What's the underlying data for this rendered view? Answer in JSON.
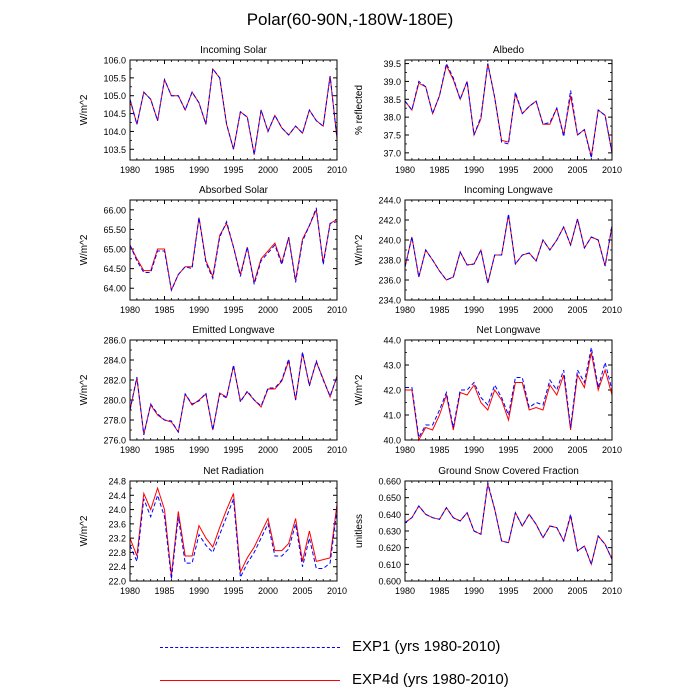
{
  "title": "Polar(60-90N,-180W-180E)",
  "legend": [
    {
      "label": "EXP1 (yrs 1980-2010)",
      "color": "#0000ff",
      "style": "dashed"
    },
    {
      "label": "EXP4d (yrs 1980-2010)",
      "color": "#ff0000",
      "style": "solid"
    }
  ],
  "chart_data": [
    {
      "type": "line",
      "title": "Incoming Solar",
      "ylabel": "W/m^2",
      "xlim": [
        1980,
        2010
      ],
      "ylim": [
        103.2,
        106.0
      ],
      "xticks": [
        1980,
        1985,
        1990,
        1995,
        2000,
        2005,
        2010
      ],
      "yticks": [
        103.5,
        104.0,
        104.5,
        105.0,
        105.5,
        106.0
      ],
      "ytick_labels": [
        "103.5",
        "104.0",
        "104.5",
        "105.0",
        "105.5",
        "106.0"
      ],
      "x": [
        1980,
        1981,
        1982,
        1983,
        1984,
        1985,
        1986,
        1987,
        1988,
        1989,
        1990,
        1991,
        1992,
        1993,
        1994,
        1995,
        1996,
        1997,
        1998,
        1999,
        2000,
        2001,
        2002,
        2003,
        2004,
        2005,
        2006,
        2007,
        2008,
        2009,
        2010
      ],
      "series": [
        {
          "name": "EXP1 (yrs 1980-2010)",
          "values": [
            104.9,
            104.2,
            105.1,
            104.9,
            104.3,
            105.45,
            105.0,
            105.0,
            104.6,
            105.1,
            104.8,
            104.2,
            105.75,
            105.5,
            104.2,
            103.5,
            104.55,
            104.4,
            103.35,
            104.6,
            104.0,
            104.45,
            104.1,
            103.9,
            104.15,
            103.95,
            104.6,
            104.3,
            104.15,
            105.55,
            103.8
          ]
        },
        {
          "name": "EXP4d (yrs 1980-2010)",
          "values": [
            104.9,
            104.2,
            105.1,
            104.9,
            104.3,
            105.45,
            105.0,
            105.0,
            104.6,
            105.1,
            104.8,
            104.2,
            105.75,
            105.5,
            104.2,
            103.5,
            104.55,
            104.4,
            103.35,
            104.6,
            104.0,
            104.45,
            104.1,
            103.9,
            104.15,
            103.95,
            104.6,
            104.3,
            104.15,
            105.55,
            103.8
          ]
        }
      ]
    },
    {
      "type": "line",
      "title": "Albedo",
      "ylabel": "% reflected",
      "xlim": [
        1980,
        2010
      ],
      "ylim": [
        36.8,
        39.6
      ],
      "xticks": [
        1980,
        1985,
        1990,
        1995,
        2000,
        2005,
        2010
      ],
      "yticks": [
        37.0,
        37.5,
        38.0,
        38.5,
        39.0,
        39.5
      ],
      "ytick_labels": [
        "37.0",
        "37.5",
        "38.0",
        "38.5",
        "39.0",
        "39.5"
      ],
      "x": [
        1980,
        1981,
        1982,
        1983,
        1984,
        1985,
        1986,
        1987,
        1988,
        1989,
        1990,
        1991,
        1992,
        1993,
        1994,
        1995,
        1996,
        1997,
        1998,
        1999,
        2000,
        2001,
        2002,
        2003,
        2004,
        2005,
        2006,
        2007,
        2008,
        2009,
        2010
      ],
      "series": [
        {
          "name": "EXP1 (yrs 1980-2010)",
          "values": [
            38.45,
            38.2,
            39.0,
            38.85,
            38.1,
            38.6,
            39.5,
            39.1,
            38.5,
            39.0,
            37.5,
            38.0,
            39.5,
            38.55,
            37.3,
            37.25,
            38.7,
            38.1,
            38.3,
            38.45,
            37.8,
            37.85,
            38.25,
            37.45,
            38.75,
            37.5,
            37.65,
            36.85,
            38.2,
            38.05,
            37.0
          ]
        },
        {
          "name": "EXP4d (yrs 1980-2010)",
          "values": [
            38.45,
            38.2,
            38.95,
            38.85,
            38.1,
            38.6,
            39.45,
            39.05,
            38.5,
            39.0,
            37.5,
            37.95,
            39.5,
            38.55,
            37.35,
            37.3,
            38.65,
            38.1,
            38.3,
            38.45,
            37.8,
            37.8,
            38.25,
            37.5,
            38.6,
            37.5,
            37.65,
            36.9,
            38.2,
            38.05,
            37.0
          ]
        }
      ]
    },
    {
      "type": "line",
      "title": "Absorbed Solar",
      "ylabel": "W/m^2",
      "xlim": [
        1980,
        2010
      ],
      "ylim": [
        63.7,
        66.25
      ],
      "xticks": [
        1980,
        1985,
        1990,
        1995,
        2000,
        2005,
        2010
      ],
      "yticks": [
        64.0,
        64.5,
        65.0,
        65.5,
        66.0
      ],
      "ytick_labels": [
        "64.00",
        "64.50",
        "65.00",
        "65.50",
        "66.00"
      ],
      "x": [
        1980,
        1981,
        1982,
        1983,
        1984,
        1985,
        1986,
        1987,
        1988,
        1989,
        1990,
        1991,
        1992,
        1993,
        1994,
        1995,
        1996,
        1997,
        1998,
        1999,
        2000,
        2001,
        2002,
        2003,
        2004,
        2005,
        2006,
        2007,
        2008,
        2009,
        2010
      ],
      "series": [
        {
          "name": "EXP1 (yrs 1980-2010)",
          "values": [
            65.1,
            64.7,
            64.4,
            64.4,
            64.95,
            64.95,
            63.95,
            64.35,
            64.55,
            64.5,
            65.8,
            64.65,
            64.25,
            65.3,
            65.7,
            65.05,
            64.3,
            65.05,
            64.1,
            64.7,
            64.9,
            65.1,
            64.6,
            65.3,
            64.15,
            65.2,
            65.6,
            66.05,
            64.6,
            65.65,
            65.7
          ]
        },
        {
          "name": "EXP4d (yrs 1980-2010)",
          "values": [
            65.1,
            64.75,
            64.45,
            64.45,
            65.0,
            65.0,
            63.95,
            64.35,
            64.55,
            64.55,
            65.8,
            64.7,
            64.3,
            65.35,
            65.65,
            65.05,
            64.35,
            65.05,
            64.15,
            64.75,
            64.95,
            65.15,
            64.65,
            65.3,
            64.2,
            65.25,
            65.6,
            66.0,
            64.65,
            65.65,
            65.75
          ]
        }
      ]
    },
    {
      "type": "line",
      "title": "Incoming Longwave",
      "ylabel": "W/m^2",
      "xlim": [
        1980,
        2010
      ],
      "ylim": [
        234.0,
        244.0
      ],
      "xticks": [
        1980,
        1985,
        1990,
        1995,
        2000,
        2005,
        2010
      ],
      "yticks": [
        234.0,
        236.0,
        238.0,
        240.0,
        242.0,
        244.0
      ],
      "ytick_labels": [
        "234.0",
        "236.0",
        "238.0",
        "240.0",
        "242.0",
        "244.0"
      ],
      "x": [
        1980,
        1981,
        1982,
        1983,
        1984,
        1985,
        1986,
        1987,
        1988,
        1989,
        1990,
        1991,
        1992,
        1993,
        1994,
        1995,
        1996,
        1997,
        1998,
        1999,
        2000,
        2001,
        2002,
        2003,
        2004,
        2005,
        2006,
        2007,
        2008,
        2009,
        2010
      ],
      "series": [
        {
          "name": "EXP1 (yrs 1980-2010)",
          "values": [
            237.3,
            240.3,
            236.3,
            239.0,
            238.0,
            236.9,
            236.0,
            236.3,
            238.8,
            237.5,
            237.6,
            239.0,
            235.7,
            238.5,
            238.5,
            242.6,
            237.6,
            238.5,
            238.7,
            237.9,
            240.0,
            239.0,
            240.0,
            241.3,
            239.5,
            242.1,
            239.2,
            240.3,
            240.0,
            237.4,
            241.4
          ]
        },
        {
          "name": "EXP4d (yrs 1980-2010)",
          "values": [
            237.3,
            240.3,
            236.3,
            239.0,
            238.0,
            236.9,
            236.0,
            236.3,
            238.8,
            237.5,
            237.6,
            239.0,
            235.7,
            238.5,
            238.5,
            242.5,
            237.6,
            238.5,
            238.7,
            237.9,
            240.0,
            239.0,
            240.0,
            241.3,
            239.5,
            242.1,
            239.2,
            240.3,
            240.0,
            237.4,
            241.4
          ]
        }
      ]
    },
    {
      "type": "line",
      "title": "Emitted Longwave",
      "ylabel": "W/m^2",
      "xlim": [
        1980,
        2010
      ],
      "ylim": [
        276.0,
        286.0
      ],
      "xticks": [
        1980,
        1985,
        1990,
        1995,
        2000,
        2005,
        2010
      ],
      "yticks": [
        276.0,
        278.0,
        280.0,
        282.0,
        284.0,
        286.0
      ],
      "ytick_labels": [
        "276.0",
        "278.0",
        "280.0",
        "282.0",
        "284.0",
        "286.0"
      ],
      "x": [
        1980,
        1981,
        1982,
        1983,
        1984,
        1985,
        1986,
        1987,
        1988,
        1989,
        1990,
        1991,
        1992,
        1993,
        1994,
        1995,
        1996,
        1997,
        1998,
        1999,
        2000,
        2001,
        2002,
        2003,
        2004,
        2005,
        2006,
        2007,
        2008,
        2009,
        2010
      ],
      "series": [
        {
          "name": "EXP1 (yrs 1980-2010)",
          "values": [
            279.0,
            282.3,
            276.5,
            279.6,
            278.6,
            278.0,
            277.9,
            276.8,
            280.6,
            279.6,
            279.9,
            280.7,
            277.0,
            280.6,
            280.2,
            283.5,
            279.8,
            280.9,
            280.0,
            279.4,
            281.2,
            281.2,
            282.0,
            284.1,
            280.0,
            284.8,
            281.4,
            283.9,
            282.0,
            280.4,
            282.3
          ]
        },
        {
          "name": "EXP4d (yrs 1980-2010)",
          "values": [
            279.0,
            282.2,
            276.6,
            279.5,
            278.5,
            278.0,
            277.8,
            276.8,
            280.6,
            279.5,
            280.0,
            280.6,
            277.0,
            280.7,
            280.3,
            283.4,
            279.9,
            280.8,
            280.0,
            279.3,
            281.1,
            281.1,
            281.9,
            283.9,
            280.0,
            284.7,
            281.5,
            283.8,
            282.1,
            280.3,
            282.4
          ]
        }
      ]
    },
    {
      "type": "line",
      "title": "Net Longwave",
      "ylabel": "W/m^2",
      "xlim": [
        1980,
        2010
      ],
      "ylim": [
        40.0,
        44.0
      ],
      "xticks": [
        1980,
        1985,
        1990,
        1995,
        2000,
        2005,
        2010
      ],
      "yticks": [
        40.0,
        41.0,
        42.0,
        43.0,
        44.0
      ],
      "ytick_labels": [
        "40.0",
        "41.0",
        "42.0",
        "43.0",
        "44.0"
      ],
      "x": [
        1980,
        1981,
        1982,
        1983,
        1984,
        1985,
        1986,
        1987,
        1988,
        1989,
        1990,
        1991,
        1992,
        1993,
        1994,
        1995,
        1996,
        1997,
        1998,
        1999,
        2000,
        2001,
        2002,
        2003,
        2004,
        2005,
        2006,
        2007,
        2008,
        2009,
        2010
      ],
      "series": [
        {
          "name": "EXP1 (yrs 1980-2010)",
          "values": [
            42.1,
            42.1,
            40.1,
            40.6,
            40.6,
            41.2,
            41.9,
            40.5,
            42.0,
            42.0,
            42.3,
            41.7,
            41.4,
            42.2,
            41.7,
            41.0,
            42.5,
            42.5,
            41.3,
            41.5,
            41.4,
            42.4,
            42.0,
            42.8,
            40.5,
            42.8,
            42.3,
            43.7,
            42.1,
            43.1,
            42.0
          ]
        },
        {
          "name": "EXP4d (yrs 1980-2010)",
          "values": [
            42.0,
            42.0,
            40.0,
            40.5,
            40.4,
            41.0,
            41.8,
            40.4,
            41.9,
            41.8,
            42.2,
            41.5,
            41.2,
            42.0,
            41.6,
            40.8,
            42.3,
            42.3,
            41.2,
            41.3,
            41.2,
            42.2,
            41.8,
            42.6,
            40.4,
            42.6,
            42.1,
            43.5,
            42.0,
            42.8,
            41.8
          ]
        }
      ]
    },
    {
      "type": "line",
      "title": "Net Radiation",
      "ylabel": "W/m^2",
      "xlim": [
        1980,
        2010
      ],
      "ylim": [
        22.0,
        24.8
      ],
      "xticks": [
        1980,
        1985,
        1990,
        1995,
        2000,
        2005,
        2010
      ],
      "yticks": [
        22.0,
        22.4,
        22.8,
        23.2,
        23.6,
        24.0,
        24.4,
        24.8
      ],
      "ytick_labels": [
        "22.0",
        "22.4",
        "22.8",
        "23.2",
        "23.6",
        "24.0",
        "24.4",
        "24.8"
      ],
      "x": [
        1980,
        1981,
        1982,
        1983,
        1984,
        1985,
        1986,
        1987,
        1988,
        1989,
        1990,
        1991,
        1992,
        1993,
        1994,
        1995,
        1996,
        1997,
        1998,
        1999,
        2000,
        2001,
        2002,
        2003,
        2004,
        2005,
        2006,
        2007,
        2008,
        2009,
        2010
      ],
      "series": [
        {
          "name": "EXP1 (yrs 1980-2010)",
          "values": [
            23.0,
            22.55,
            24.3,
            23.8,
            24.4,
            23.8,
            22.05,
            23.8,
            22.5,
            22.5,
            23.3,
            23.0,
            22.8,
            23.3,
            23.8,
            24.3,
            22.1,
            22.5,
            22.8,
            23.2,
            23.6,
            22.7,
            22.7,
            22.9,
            23.6,
            22.4,
            23.2,
            22.35,
            22.35,
            22.5,
            24.0
          ]
        },
        {
          "name": "EXP4d (yrs 1980-2010)",
          "values": [
            23.2,
            22.7,
            24.45,
            24.0,
            24.6,
            24.0,
            22.15,
            23.95,
            22.7,
            22.7,
            23.55,
            23.2,
            22.95,
            23.5,
            24.0,
            24.45,
            22.25,
            22.65,
            22.95,
            23.35,
            23.75,
            22.85,
            22.85,
            23.05,
            23.75,
            22.55,
            23.4,
            22.55,
            22.6,
            22.65,
            24.15
          ]
        }
      ]
    },
    {
      "type": "line",
      "title": "Ground Snow Covered Fraction",
      "ylabel": "unitless",
      "xlim": [
        1980,
        2010
      ],
      "ylim": [
        0.6,
        0.66
      ],
      "xticks": [
        1980,
        1985,
        1990,
        1995,
        2000,
        2005,
        2010
      ],
      "yticks": [
        0.6,
        0.61,
        0.62,
        0.63,
        0.64,
        0.65,
        0.66
      ],
      "ytick_labels": [
        "0.600",
        "0.610",
        "0.620",
        "0.630",
        "0.640",
        "0.650",
        "0.660"
      ],
      "x": [
        1980,
        1981,
        1982,
        1983,
        1984,
        1985,
        1986,
        1987,
        1988,
        1989,
        1990,
        1991,
        1992,
        1993,
        1994,
        1995,
        1996,
        1997,
        1998,
        1999,
        2000,
        2001,
        2002,
        2003,
        2004,
        2005,
        2006,
        2007,
        2008,
        2009,
        2010
      ],
      "series": [
        {
          "name": "EXP1 (yrs 1980-2010)",
          "values": [
            0.635,
            0.638,
            0.645,
            0.64,
            0.638,
            0.637,
            0.644,
            0.638,
            0.636,
            0.641,
            0.63,
            0.628,
            0.659,
            0.643,
            0.624,
            0.623,
            0.641,
            0.633,
            0.64,
            0.634,
            0.626,
            0.633,
            0.632,
            0.624,
            0.64,
            0.618,
            0.621,
            0.61,
            0.627,
            0.622,
            0.613
          ]
        },
        {
          "name": "EXP4d (yrs 1980-2010)",
          "values": [
            0.635,
            0.638,
            0.645,
            0.64,
            0.638,
            0.637,
            0.644,
            0.638,
            0.636,
            0.641,
            0.63,
            0.628,
            0.658,
            0.643,
            0.624,
            0.623,
            0.641,
            0.633,
            0.64,
            0.634,
            0.626,
            0.633,
            0.632,
            0.624,
            0.639,
            0.618,
            0.621,
            0.61,
            0.627,
            0.622,
            0.613
          ]
        }
      ]
    }
  ]
}
